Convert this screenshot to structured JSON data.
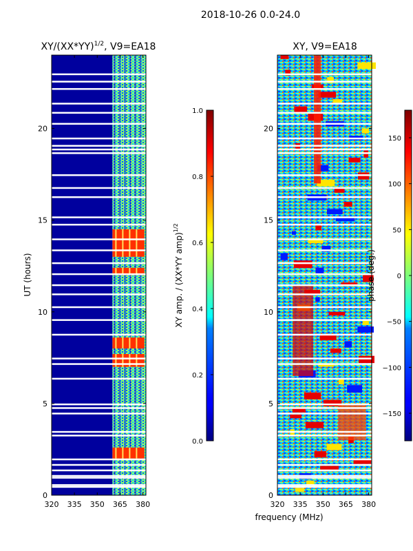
{
  "figure_title": "2018-10-26 0.0-24.0",
  "chart_data": [
    {
      "type": "heatmap",
      "title": "XY/(XX*YY)^{1/2}, V9=EA18",
      "title_main": "XY/(XX*YY)",
      "title_exp": "1/2",
      "title_suffix": ", V9=EA18",
      "xlabel": "",
      "ylabel": "UT (hours)",
      "xlim": [
        320,
        382
      ],
      "ylim": [
        0,
        24
      ],
      "xticks": [
        "320",
        "335",
        "350",
        "365",
        "380"
      ],
      "xtick_values": [
        320,
        335,
        350,
        365,
        380
      ],
      "yticks": [
        "0",
        "5",
        "10",
        "15",
        "20"
      ],
      "ytick_values": [
        0,
        5,
        10,
        15,
        20
      ],
      "colorbar": {
        "label": "XY amp. / (XX*YY amp)^{1/2}",
        "label_main": "XY amp. / (XX*YY amp)",
        "label_exp": "1/2",
        "range": [
          0.0,
          1.0
        ],
        "ticks": [
          "0.0",
          "0.2",
          "0.4",
          "0.6",
          "0.8",
          "1.0"
        ],
        "tick_values": [
          0.0,
          0.2,
          0.4,
          0.6,
          0.8,
          1.0
        ],
        "colormap": "jet"
      },
      "bands": [
        {
          "freq_start": 320,
          "freq_end": 360,
          "value": 0.03
        },
        {
          "freq_start": 360,
          "freq_end": 382,
          "value": 0.45
        }
      ],
      "high_blocks_hours": [
        [
          13.0,
          14.5
        ],
        [
          12.0,
          12.4
        ],
        [
          8.0,
          8.6
        ],
        [
          7.0,
          7.7
        ],
        [
          2.0,
          2.6
        ]
      ]
    },
    {
      "type": "heatmap",
      "title": "XY, V9=EA18",
      "xlabel": "frequency (MHz)",
      "ylabel": "",
      "xlim": [
        320,
        382
      ],
      "ylim": [
        0,
        24
      ],
      "xticks": [
        "320",
        "335",
        "350",
        "365",
        "380"
      ],
      "xtick_values": [
        320,
        335,
        350,
        365,
        380
      ],
      "yticks": [
        "0",
        "5",
        "10",
        "15",
        "20"
      ],
      "ytick_values": [
        0,
        5,
        10,
        15,
        20
      ],
      "colorbar": {
        "label": "phase (deg.)",
        "range": [
          -180,
          180
        ],
        "ticks": [
          "150",
          "100",
          "50",
          "0",
          "−50",
          "−100",
          "−150"
        ],
        "tick_values": [
          150,
          100,
          50,
          0,
          -50,
          -100,
          -150
        ],
        "colormap": "jet"
      }
    }
  ],
  "gap_hours": [
    0.5,
    0.6,
    1.0,
    1.1,
    1.4,
    1.7,
    2.0,
    3.3,
    3.5,
    4.5,
    4.8,
    5.0,
    6.4,
    7.2,
    7.5,
    8.8,
    9.6,
    10.3,
    11.0,
    11.5,
    12.1,
    12.7,
    13.4,
    14.0,
    14.8,
    15.2,
    16.3,
    16.8,
    17.5,
    18.7,
    18.9,
    19.1,
    19.5,
    20.3,
    20.9,
    21.4,
    22.2,
    22.6,
    23.0
  ]
}
